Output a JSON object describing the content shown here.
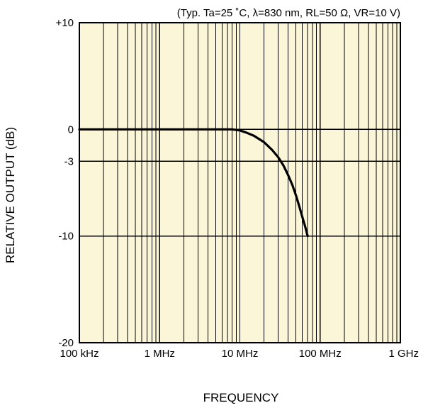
{
  "chart_data": {
    "type": "line",
    "title": "",
    "conditions": "(Typ. Ta=25 ˚C, λ=830 nm, RL=50 Ω, VR=10 V)",
    "xlabel": "FREQUENCY",
    "ylabel": "RELATIVE OUTPUT (dB)",
    "x_scale": "log",
    "x_unit": "Hz",
    "xlim": [
      100000,
      1000000000
    ],
    "ylim": [
      -20,
      10
    ],
    "x_ticks": [
      {
        "value": 100000,
        "label": "100 kHz"
      },
      {
        "value": 1000000,
        "label": "1 MHz"
      },
      {
        "value": 10000000,
        "label": "10 MHz"
      },
      {
        "value": 100000000,
        "label": "100 MHz"
      },
      {
        "value": 1000000000,
        "label": "1 GHz"
      }
    ],
    "y_ticks": [
      {
        "value": 10,
        "label": "+10"
      },
      {
        "value": 0,
        "label": "0"
      },
      {
        "value": -3,
        "label": "-3"
      },
      {
        "value": -10,
        "label": "-10"
      },
      {
        "value": -20,
        "label": "-20"
      }
    ],
    "grid": true,
    "series": [
      {
        "x": [
          100000,
          1000000,
          5000000,
          7000000,
          8000000,
          10000000,
          12000000,
          15000000,
          20000000,
          25000000,
          30000000,
          35000000,
          40000000,
          45000000,
          50000000,
          55000000,
          60000000,
          65000000,
          70000000
        ],
        "y": [
          0,
          0,
          0,
          0,
          0,
          -0.1,
          -0.3,
          -0.6,
          -1.2,
          -1.9,
          -2.6,
          -3.4,
          -4.3,
          -5.2,
          -6.2,
          -7.2,
          -8.2,
          -9.1,
          -10
        ]
      }
    ]
  }
}
